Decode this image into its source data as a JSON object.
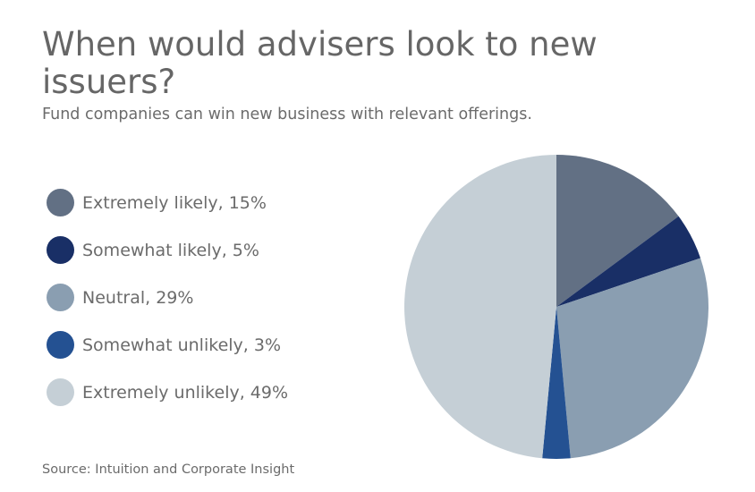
{
  "chart_data": {
    "type": "pie",
    "title": "When would advisers look to new issuers?",
    "subtitle": "Fund companies can win new business with relevant offerings.",
    "source": "Source: Intuition and Corporate Insight",
    "slices": [
      {
        "label": "Extremely likely",
        "value": 15,
        "display": "Extremely likely, 15%",
        "color": "#627084"
      },
      {
        "label": "Somewhat likely",
        "value": 5,
        "display": "Somewhat likely, 5%",
        "color": "#192f66"
      },
      {
        "label": "Neutral",
        "value": 29,
        "display": "Neutral, 29%",
        "color": "#8a9eb1"
      },
      {
        "label": "Somewhat unlikely",
        "value": 3,
        "display": "Somewhat unlikely, 3%",
        "color": "#245192"
      },
      {
        "label": "Extremely unlikely",
        "value": 49,
        "display": "Extremely unlikely, 49%",
        "color": "#c5cfd6"
      }
    ],
    "legend_position": "left",
    "start_angle": "12 o'clock, clockwise"
  }
}
